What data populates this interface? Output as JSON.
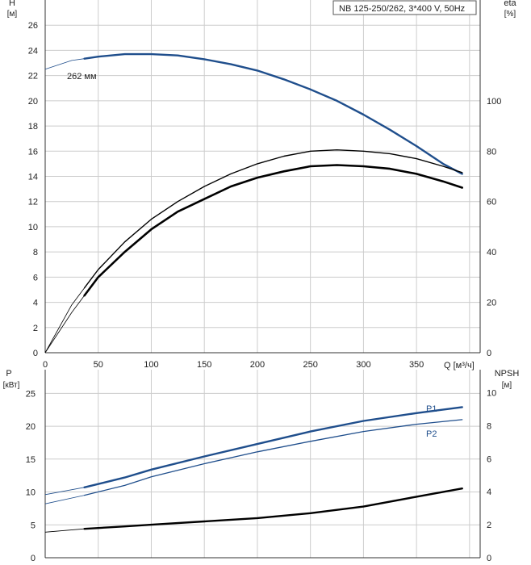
{
  "chart_data": [
    {
      "type": "line",
      "panel": "head_efficiency",
      "title_box": "NB 125-250/262, 3*400 V, 50Hz",
      "left_axis": {
        "label": "H",
        "unit": "[м]",
        "range": [
          0,
          28
        ],
        "ticks": [
          0,
          2,
          4,
          6,
          8,
          10,
          12,
          14,
          16,
          18,
          20,
          22,
          24,
          26
        ]
      },
      "right_axis": {
        "label": "eta",
        "unit": "[%]",
        "range": [
          0,
          140
        ],
        "ticks": [
          0,
          20,
          40,
          60,
          80,
          100
        ]
      },
      "x_axis": {
        "label": "Q [м³/ч]",
        "range": [
          0,
          410
        ],
        "ticks": [
          0,
          50,
          100,
          150,
          200,
          250,
          300,
          350
        ]
      },
      "curve_label": "262 мм",
      "series": [
        {
          "name": "H",
          "axis": "left",
          "color": "#1f4e8c",
          "x": [
            0,
            25,
            50,
            75,
            100,
            125,
            150,
            175,
            200,
            225,
            250,
            275,
            300,
            325,
            350,
            375,
            393
          ],
          "y": [
            22.5,
            23.2,
            23.5,
            23.7,
            23.7,
            23.6,
            23.3,
            22.9,
            22.4,
            21.7,
            20.9,
            20.0,
            18.9,
            17.7,
            16.4,
            15.0,
            14.2
          ]
        },
        {
          "name": "eta",
          "axis": "right",
          "color": "#000000",
          "x": [
            0,
            25,
            50,
            75,
            100,
            125,
            150,
            175,
            200,
            225,
            250,
            275,
            300,
            325,
            350,
            375,
            393
          ],
          "y": [
            0,
            19,
            33,
            44,
            53,
            60,
            66,
            71,
            75,
            78,
            80,
            80.5,
            80,
            79,
            77,
            74,
            71.5
          ]
        },
        {
          "name": "eta_bold",
          "axis": "right",
          "color": "#000000",
          "x": [
            0,
            25,
            50,
            75,
            100,
            125,
            150,
            175,
            200,
            225,
            250,
            275,
            300,
            325,
            350,
            375,
            393
          ],
          "y": [
            0,
            16,
            30,
            40,
            49,
            56,
            61,
            66,
            69.5,
            72,
            74,
            74.5,
            74,
            73,
            71,
            68,
            65.5
          ]
        }
      ]
    },
    {
      "type": "line",
      "panel": "power_npsh",
      "left_axis": {
        "label": "P",
        "unit": "[кВт]",
        "range": [
          0,
          28.6
        ],
        "ticks": [
          0,
          5,
          10,
          15,
          20,
          25
        ]
      },
      "right_axis": {
        "label": "NPSH",
        "unit": "[м]",
        "range": [
          0,
          11.4
        ],
        "ticks": [
          0,
          2,
          4,
          6,
          8,
          10
        ]
      },
      "x_axis": {
        "range": [
          0,
          410
        ]
      },
      "series": [
        {
          "name": "P1",
          "axis": "left",
          "color": "#1f4e8c",
          "x": [
            0,
            37,
            75,
            100,
            150,
            200,
            250,
            300,
            350,
            393
          ],
          "y": [
            9.6,
            10.7,
            12.2,
            13.4,
            15.4,
            17.3,
            19.2,
            20.8,
            22.0,
            22.9
          ]
        },
        {
          "name": "P2",
          "axis": "left",
          "color": "#1f4e8c",
          "x": [
            0,
            37,
            75,
            100,
            150,
            200,
            250,
            300,
            350,
            393
          ],
          "y": [
            8.2,
            9.5,
            11.0,
            12.3,
            14.3,
            16.1,
            17.7,
            19.2,
            20.3,
            21.0
          ]
        },
        {
          "name": "NPSH",
          "axis": "right",
          "color": "#000000",
          "x": [
            0,
            37,
            75,
            100,
            150,
            200,
            250,
            300,
            350,
            393
          ],
          "y": [
            1.55,
            1.75,
            1.9,
            2.0,
            2.2,
            2.4,
            2.7,
            3.1,
            3.7,
            4.2
          ]
        }
      ]
    }
  ]
}
